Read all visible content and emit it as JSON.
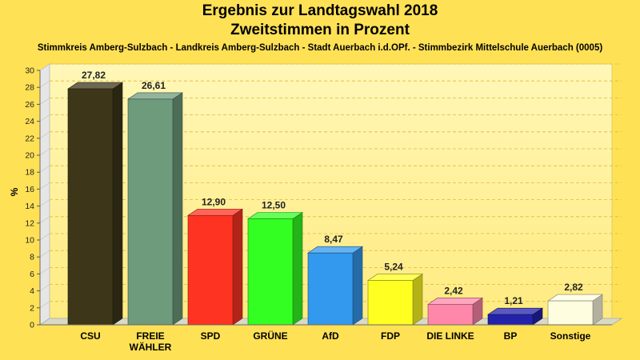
{
  "chart_data": {
    "type": "bar",
    "title": "Ergebnis zur Landtagswahl 2018",
    "subtitle": "Zweitstimmen in Prozent",
    "caption": "Stimmkreis Amberg-Sulzbach - Landkreis Amberg-Sulzbach - Stadt Auerbach i.d.OPf. - Stimmbezirk Mittelschule Auerbach (0005)",
    "ylabel": "%",
    "xlabel": "",
    "ylim": [
      0,
      30
    ],
    "yticks": [
      "0",
      "2",
      "4",
      "6",
      "8",
      "10",
      "12",
      "14",
      "16",
      "18",
      "20",
      "22",
      "24",
      "26",
      "28",
      "30"
    ],
    "grid": true,
    "categories": [
      "CSU",
      "FREIE\nWÄHLER",
      "SPD",
      "GRÜNE",
      "AfD",
      "FDP",
      "DIE LINKE",
      "BP",
      "Sonstige"
    ],
    "values": [
      27.82,
      26.61,
      12.9,
      12.5,
      8.47,
      5.24,
      2.42,
      1.21,
      2.82
    ],
    "value_labels": [
      "27,82",
      "26,61",
      "12,90",
      "12,50",
      "8,47",
      "5,24",
      "2,42",
      "1,21",
      "2,82"
    ],
    "colors": [
      "#3d3618",
      "#6e9b7c",
      "#ff3322",
      "#33ff22",
      "#3399ee",
      "#ffff22",
      "#ff88aa",
      "#2222aa",
      "#fffde0"
    ]
  }
}
